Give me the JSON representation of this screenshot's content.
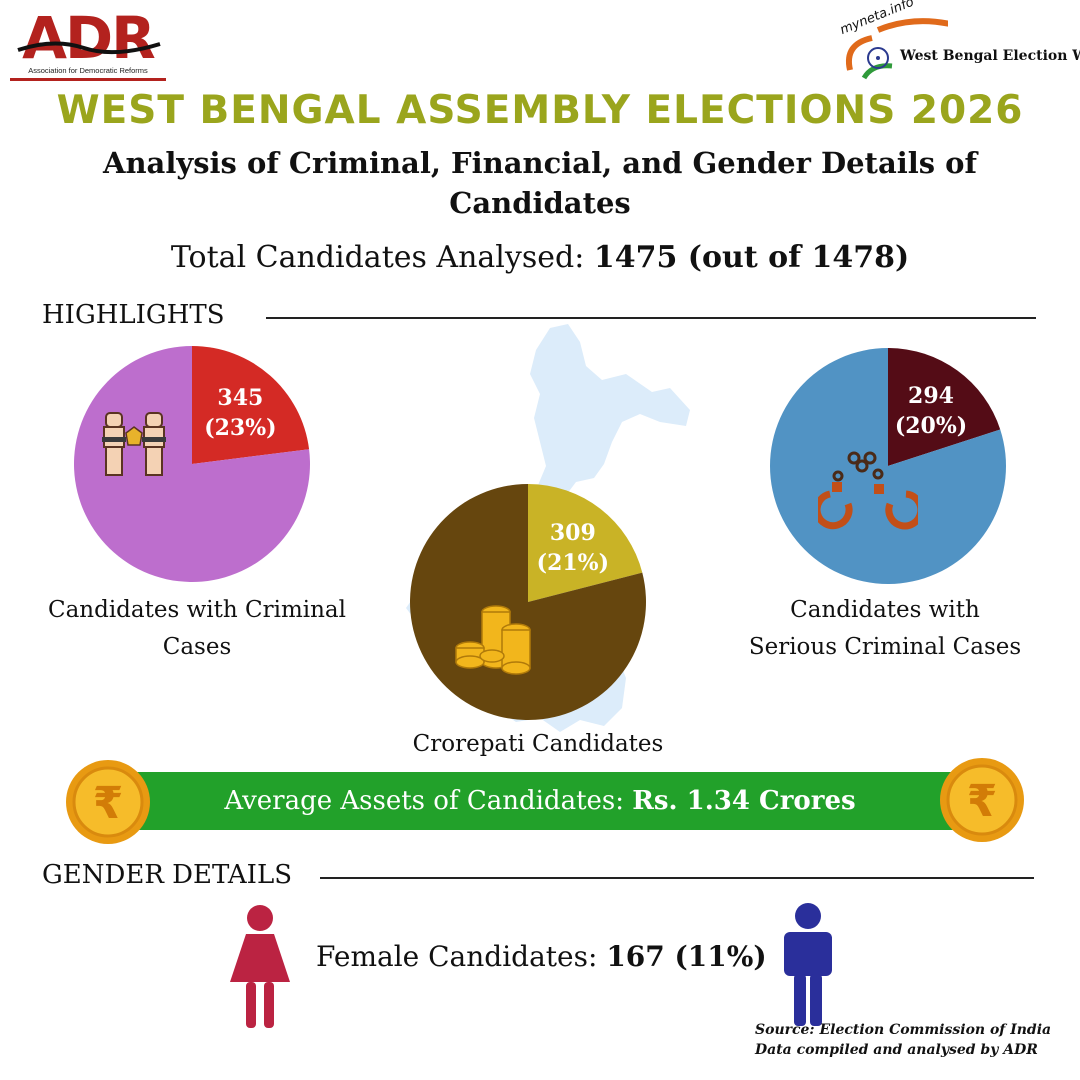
{
  "header": {
    "adr_logo_text": "ADR",
    "adr_logo_subtitle": "Association for Democratic Reforms",
    "myneta_logo_text": "myneta.info",
    "myneta_logo_caption": "West Bengal Election Watch",
    "title": "WEST BENGAL ASSEMBLY ELECTIONS 2026",
    "subtitle_line1": "Analysis of Criminal, Financial, and Gender Details of",
    "subtitle_line2": "Candidates",
    "total_prefix": "Total Candidates Analysed: ",
    "total_value": "1475 (out of 1478)"
  },
  "highlights": {
    "heading": "HIGHLIGHTS"
  },
  "chart_data": [
    {
      "type": "pie",
      "title": "",
      "caption_line1": "Candidates with Criminal",
      "caption_line2": "Cases",
      "slices": [
        {
          "label": "345 (23%)",
          "count": "345",
          "pct_text": "(23%)",
          "value": 23,
          "color": "#d42a25"
        },
        {
          "label": "Others",
          "value": 77,
          "color": "#bd6ecd"
        }
      ],
      "icon": "handcuffed-hands-icon"
    },
    {
      "type": "pie",
      "title": "",
      "caption_line1": "Crorepati Candidates",
      "caption_line2": "",
      "slices": [
        {
          "label": "309 (21%)",
          "count": "309",
          "pct_text": "(21%)",
          "value": 21,
          "color": "#c9b326"
        },
        {
          "label": "Others",
          "value": 79,
          "color": "#66460e"
        }
      ],
      "icon": "rupee-coins-icon"
    },
    {
      "type": "pie",
      "title": "",
      "caption_line1": "Candidates with",
      "caption_line2": "Serious Criminal Cases",
      "slices": [
        {
          "label": "294 (20%)",
          "count": "294",
          "pct_text": "(20%)",
          "value": 20,
          "color": "#540c16"
        },
        {
          "label": "Others",
          "value": 80,
          "color": "#5193c4"
        }
      ],
      "icon": "handcuffs-icon"
    }
  ],
  "assets": {
    "prefix": "Average Assets of Candidates: ",
    "value": "Rs. 1.34 Crores",
    "icon": "rupee-coin-icon"
  },
  "gender": {
    "heading": "GENDER DETAILS",
    "female_prefix": "Female Candidates: ",
    "female_value": "167 (11%)",
    "female_icon": "female-person-icon",
    "male_icon": "male-person-icon"
  },
  "source": {
    "line1": "Source: Election Commission of India",
    "line2": "Data compiled and analysed by ADR"
  },
  "colors": {
    "title": "#9aa51d",
    "assets_bar": "#22a12a",
    "female": "#bb2342",
    "male": "#2a2f9b",
    "map": "#dcecfa"
  }
}
